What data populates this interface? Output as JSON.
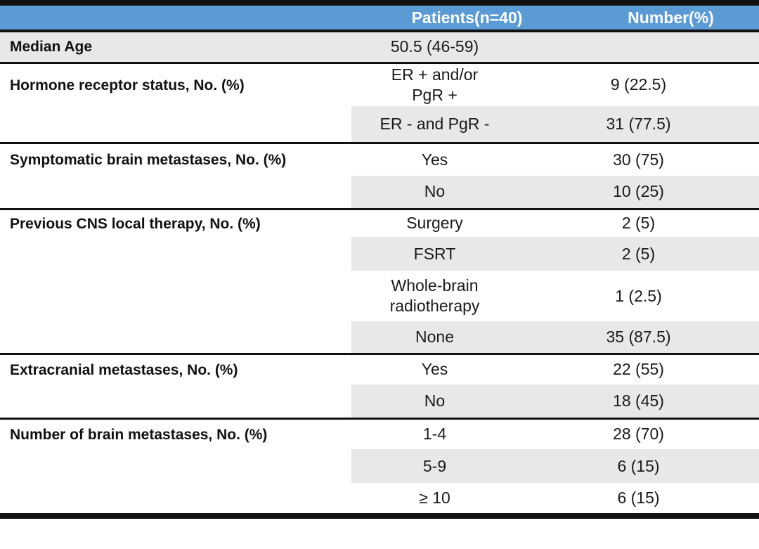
{
  "table": {
    "columns": [
      "Patients(n=40)",
      "Number(%)"
    ],
    "sections": [
      {
        "label": "Median Age",
        "rows": [
          {
            "value": "50.5 (46-59)",
            "number": ""
          }
        ]
      },
      {
        "label": "Hormone receptor status, No. (%)",
        "rows": [
          {
            "value": "ER + and/or\nPgR +",
            "number": "9 (22.5)"
          },
          {
            "value": "ER - and PgR -",
            "number": "31 (77.5)"
          }
        ]
      },
      {
        "label": "Symptomatic brain metastases, No. (%)",
        "rows": [
          {
            "value": "Yes",
            "number": "30 (75)"
          },
          {
            "value": "No",
            "number": "10 (25)"
          }
        ]
      },
      {
        "label": "Previous CNS local therapy, No. (%)",
        "rows": [
          {
            "value": "Surgery",
            "number": "2 (5)"
          },
          {
            "value": "FSRT",
            "number": "2 (5)"
          },
          {
            "value": "Whole-brain\nradiotherapy",
            "number": "1 (2.5)"
          },
          {
            "value": "None",
            "number": "35 (87.5)"
          }
        ]
      },
      {
        "label": "Extracranial metastases, No. (%)",
        "rows": [
          {
            "value": "Yes",
            "number": "22 (55)"
          },
          {
            "value": "No",
            "number": "18 (45)"
          }
        ]
      },
      {
        "label": "Number of brain metastases, No. (%)",
        "rows": [
          {
            "value": "1-4",
            "number": "28 (70)"
          },
          {
            "value": "5-9",
            "number": "6 (15)"
          },
          {
            "value": "≥ 10",
            "number": "6 (15)"
          }
        ]
      }
    ]
  },
  "colors": {
    "header_bg": "#5b9bd5",
    "header_text": "#ffffff",
    "band_bg": "#e8e8e8",
    "border": "#111111",
    "text": "#1a1a1a"
  }
}
